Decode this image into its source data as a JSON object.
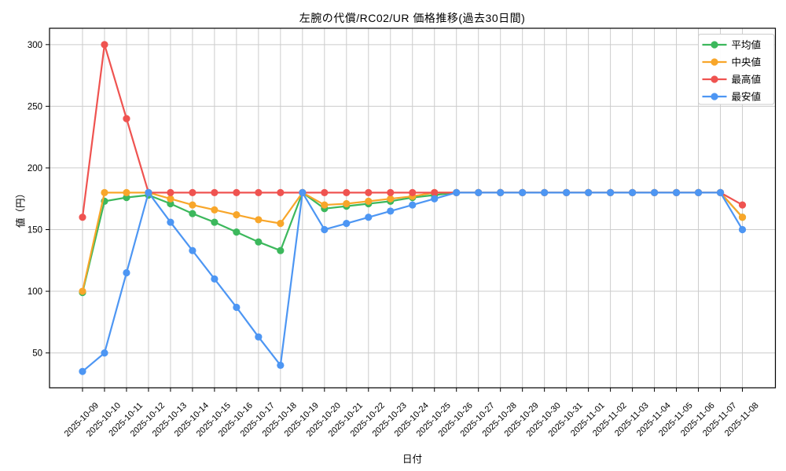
{
  "chart_data": {
    "type": "line",
    "title": "左腕の代償/RC02/UR 価格推移(過去30日間)",
    "xlabel": "日付",
    "ylabel": "値（円）",
    "x": [
      "2025-10-09",
      "2025-10-10",
      "2025-10-11",
      "2025-10-12",
      "2025-10-13",
      "2025-10-14",
      "2025-10-15",
      "2025-10-16",
      "2025-10-17",
      "2025-10-18",
      "2025-10-19",
      "2025-10-20",
      "2025-10-21",
      "2025-10-22",
      "2025-10-23",
      "2025-10-24",
      "2025-10-25",
      "2025-10-26",
      "2025-10-27",
      "2025-10-28",
      "2025-10-29",
      "2025-10-30",
      "2025-10-31",
      "2025-11-01",
      "2025-11-02",
      "2025-11-03",
      "2025-11-04",
      "2025-11-05",
      "2025-11-06",
      "2025-11-07",
      "2025-11-08"
    ],
    "series": [
      {
        "id": "average-series",
        "name": "平均値",
        "color": "#3cb85c",
        "values": [
          99,
          173,
          176,
          178,
          171,
          163,
          156,
          148,
          140,
          133,
          180,
          167,
          169,
          171,
          173,
          176,
          178,
          180,
          180,
          180,
          180,
          180,
          180,
          180,
          180,
          180,
          180,
          180,
          180,
          180,
          160
        ]
      },
      {
        "id": "median-series",
        "name": "中央値",
        "color": "#f8a62a",
        "values": [
          100,
          180,
          180,
          180,
          175,
          170,
          166,
          162,
          158,
          155,
          180,
          170,
          171,
          173,
          175,
          177,
          180,
          180,
          180,
          180,
          180,
          180,
          180,
          180,
          180,
          180,
          180,
          180,
          180,
          180,
          160
        ]
      },
      {
        "id": "max-series",
        "name": "最高値",
        "color": "#ef5350",
        "values": [
          160,
          300,
          240,
          180,
          180,
          180,
          180,
          180,
          180,
          180,
          180,
          180,
          180,
          180,
          180,
          180,
          180,
          180,
          180,
          180,
          180,
          180,
          180,
          180,
          180,
          180,
          180,
          180,
          180,
          180,
          170
        ]
      },
      {
        "id": "min-series",
        "name": "最安値",
        "color": "#4d96f3",
        "values": [
          35,
          50,
          115,
          180,
          156,
          133,
          110,
          87,
          63,
          40,
          180,
          150,
          155,
          160,
          165,
          170,
          175,
          180,
          180,
          180,
          180,
          180,
          180,
          180,
          180,
          180,
          180,
          180,
          180,
          180,
          150
        ]
      }
    ],
    "yticks": [
      50,
      100,
      150,
      200,
      250,
      300
    ],
    "ylim": [
      21.75,
      313.25
    ],
    "grid": true,
    "legend_position": "upper right",
    "grid_color": "#cccccc",
    "spine_color": "#000000",
    "background_color": "#ffffff"
  }
}
